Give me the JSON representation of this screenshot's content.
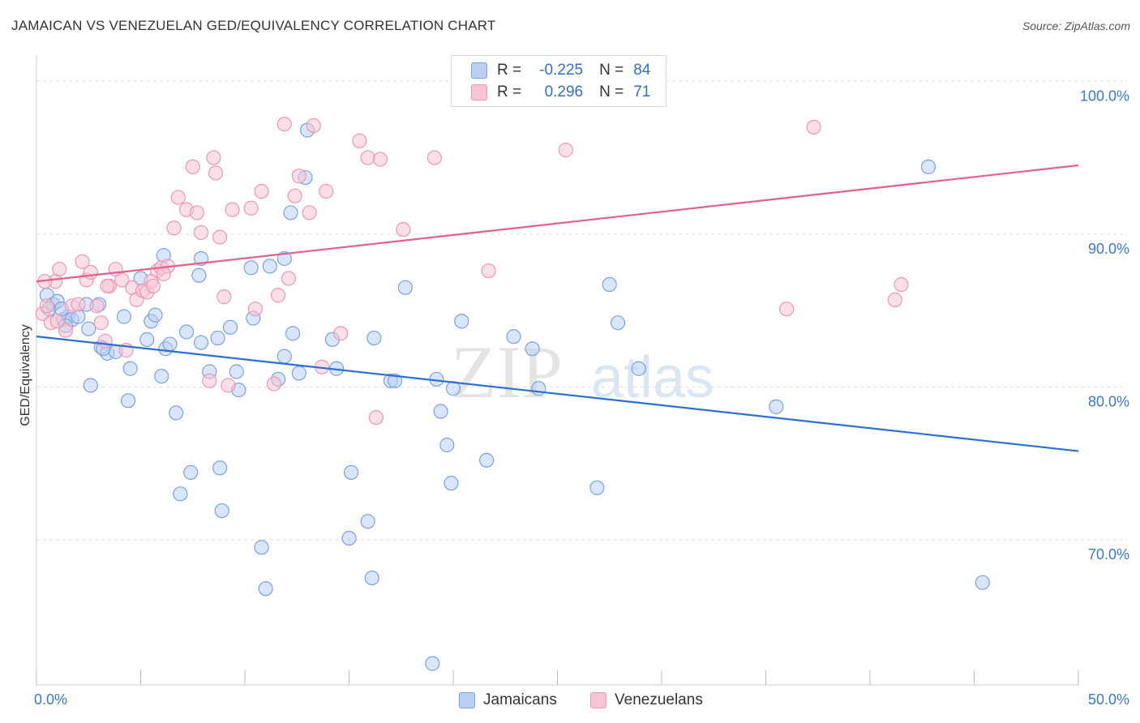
{
  "title": "JAMAICAN VS VENEZUELAN GED/EQUIVALENCY CORRELATION CHART",
  "source": "Source: ZipAtlas.com",
  "watermark": {
    "zip": "ZIP",
    "atlas": "atlas"
  },
  "legend": {
    "r_label": "R =",
    "n_label": "N =",
    "rows": [
      {
        "r": "-0.225",
        "n": "84"
      },
      {
        "r": "0.296",
        "n": "71"
      }
    ]
  },
  "colors": {
    "jamaicans_fill": "#b9d0f2",
    "jamaicans_stroke": "#7aa2e0",
    "jamaicans_line": "#2a6fd1",
    "venezuelans_fill": "#f6c4d3",
    "venezuelans_stroke": "#ec97b3",
    "venezuelans_line": "#e2608f",
    "tick_label": "#3a78c9",
    "grid": "#dddddd"
  },
  "chart_data": {
    "type": "scatter",
    "title": "JAMAICAN VS VENEZUELAN GED/EQUIVALENCY CORRELATION CHART",
    "xlabel": "",
    "ylabel": "GED/Equivalency",
    "xlim": [
      0,
      50
    ],
    "ylim": [
      60.5,
      101.5
    ],
    "x_tick_labels": [
      "0.0%",
      "50.0%"
    ],
    "y_ticks": [
      70,
      80,
      90,
      100
    ],
    "y_tick_labels": [
      "70.0%",
      "80.0%",
      "90.0%",
      "100.0%"
    ],
    "grid": true,
    "legend_position": "top-center",
    "series": [
      {
        "name": "Jamaicans",
        "r": -0.225,
        "n": 84,
        "trend": {
          "x": [
            0,
            50
          ],
          "y": [
            83.3,
            75.8
          ]
        },
        "points": [
          [
            0.5,
            86.0
          ],
          [
            0.8,
            85.4
          ],
          [
            1.0,
            85.6
          ],
          [
            0.6,
            85.1
          ],
          [
            1.3,
            84.4
          ],
          [
            1.5,
            84.6
          ],
          [
            1.7,
            84.4
          ],
          [
            2.0,
            84.6
          ],
          [
            2.4,
            85.4
          ],
          [
            2.5,
            83.8
          ],
          [
            1.4,
            84.0
          ],
          [
            3.1,
            82.6
          ],
          [
            3.4,
            82.2
          ],
          [
            3.8,
            82.3
          ],
          [
            3.2,
            82.5
          ],
          [
            4.2,
            84.6
          ],
          [
            4.5,
            81.2
          ],
          [
            5.3,
            83.1
          ],
          [
            5.5,
            84.3
          ],
          [
            5.7,
            84.7
          ],
          [
            6.2,
            82.5
          ],
          [
            6.4,
            82.8
          ],
          [
            7.2,
            83.6
          ],
          [
            7.9,
            82.9
          ],
          [
            8.7,
            83.2
          ],
          [
            9.3,
            83.9
          ],
          [
            10.4,
            84.5
          ],
          [
            11.9,
            82.0
          ],
          [
            12.3,
            83.5
          ],
          [
            14.2,
            83.1
          ],
          [
            2.6,
            80.1
          ],
          [
            4.4,
            79.1
          ],
          [
            6.0,
            80.7
          ],
          [
            6.7,
            78.3
          ],
          [
            8.3,
            81.0
          ],
          [
            9.6,
            81.0
          ],
          [
            9.7,
            79.8
          ],
          [
            11.6,
            80.5
          ],
          [
            12.6,
            80.9
          ],
          [
            14.4,
            81.2
          ],
          [
            16.2,
            83.2
          ],
          [
            17.0,
            80.4
          ],
          [
            17.2,
            80.4
          ],
          [
            19.2,
            80.5
          ],
          [
            19.4,
            78.4
          ],
          [
            20.0,
            79.9
          ],
          [
            20.4,
            84.3
          ],
          [
            22.9,
            83.3
          ],
          [
            23.8,
            82.5
          ],
          [
            24.1,
            79.9
          ],
          [
            7.4,
            74.4
          ],
          [
            8.8,
            74.7
          ],
          [
            6.9,
            73.0
          ],
          [
            8.9,
            71.9
          ],
          [
            15.1,
            74.4
          ],
          [
            19.7,
            76.2
          ],
          [
            19.9,
            73.7
          ],
          [
            21.6,
            75.2
          ],
          [
            26.9,
            73.4
          ],
          [
            15.0,
            70.1
          ],
          [
            15.9,
            71.2
          ],
          [
            10.8,
            69.5
          ],
          [
            11.0,
            66.8
          ],
          [
            16.1,
            67.5
          ],
          [
            19.0,
            61.9
          ],
          [
            6.1,
            88.6
          ],
          [
            7.8,
            87.3
          ],
          [
            7.9,
            88.4
          ],
          [
            10.3,
            87.8
          ],
          [
            11.2,
            87.9
          ],
          [
            11.9,
            88.4
          ],
          [
            12.2,
            91.4
          ],
          [
            12.9,
            93.7
          ],
          [
            13.0,
            96.8
          ],
          [
            17.7,
            86.5
          ],
          [
            27.5,
            86.7
          ],
          [
            27.9,
            84.2
          ],
          [
            28.9,
            81.2
          ],
          [
            35.5,
            78.7
          ],
          [
            42.8,
            94.4
          ],
          [
            45.4,
            67.2
          ],
          [
            5.0,
            87.1
          ],
          [
            3.0,
            85.4
          ],
          [
            1.2,
            85.1
          ]
        ]
      },
      {
        "name": "Venezuelans",
        "r": 0.296,
        "n": 71,
        "trend": {
          "x": [
            0,
            50
          ],
          "y": [
            86.9,
            94.5
          ]
        },
        "points": [
          [
            0.3,
            84.8
          ],
          [
            0.5,
            85.3
          ],
          [
            0.7,
            84.2
          ],
          [
            0.9,
            86.9
          ],
          [
            1.1,
            87.7
          ],
          [
            1.4,
            83.7
          ],
          [
            1.7,
            85.3
          ],
          [
            2.0,
            85.4
          ],
          [
            2.2,
            88.2
          ],
          [
            2.4,
            87.0
          ],
          [
            2.6,
            87.5
          ],
          [
            2.9,
            85.3
          ],
          [
            3.1,
            84.2
          ],
          [
            3.3,
            83.0
          ],
          [
            3.5,
            86.6
          ],
          [
            3.8,
            87.7
          ],
          [
            4.1,
            87.0
          ],
          [
            4.3,
            82.4
          ],
          [
            4.6,
            86.5
          ],
          [
            4.8,
            85.7
          ],
          [
            5.1,
            86.3
          ],
          [
            5.3,
            86.2
          ],
          [
            5.5,
            86.9
          ],
          [
            5.6,
            86.6
          ],
          [
            5.8,
            87.6
          ],
          [
            6.0,
            87.8
          ],
          [
            6.3,
            87.9
          ],
          [
            6.1,
            87.4
          ],
          [
            6.6,
            90.4
          ],
          [
            6.8,
            92.4
          ],
          [
            7.2,
            91.6
          ],
          [
            7.5,
            94.4
          ],
          [
            7.7,
            91.4
          ],
          [
            7.9,
            90.1
          ],
          [
            8.5,
            95.0
          ],
          [
            8.6,
            94.0
          ],
          [
            8.8,
            89.8
          ],
          [
            9.0,
            85.9
          ],
          [
            9.4,
            91.6
          ],
          [
            10.3,
            91.7
          ],
          [
            10.5,
            85.1
          ],
          [
            10.8,
            92.8
          ],
          [
            11.4,
            80.2
          ],
          [
            11.6,
            86.0
          ],
          [
            11.9,
            97.2
          ],
          [
            12.1,
            87.1
          ],
          [
            12.4,
            92.5
          ],
          [
            12.6,
            93.8
          ],
          [
            13.1,
            91.4
          ],
          [
            13.3,
            97.1
          ],
          [
            13.9,
            92.8
          ],
          [
            14.6,
            83.5
          ],
          [
            15.5,
            96.1
          ],
          [
            15.9,
            95.0
          ],
          [
            16.5,
            94.9
          ],
          [
            16.3,
            78.0
          ],
          [
            17.6,
            90.3
          ],
          [
            19.1,
            95.0
          ],
          [
            21.7,
            87.6
          ],
          [
            22.7,
            100.5
          ],
          [
            25.4,
            95.5
          ],
          [
            36.0,
            85.1
          ],
          [
            37.3,
            97.0
          ],
          [
            41.2,
            85.7
          ],
          [
            41.5,
            86.7
          ],
          [
            0.4,
            86.9
          ],
          [
            1.0,
            84.3
          ],
          [
            3.4,
            86.6
          ],
          [
            8.3,
            80.4
          ],
          [
            9.2,
            80.1
          ],
          [
            13.7,
            81.3
          ]
        ]
      }
    ]
  }
}
